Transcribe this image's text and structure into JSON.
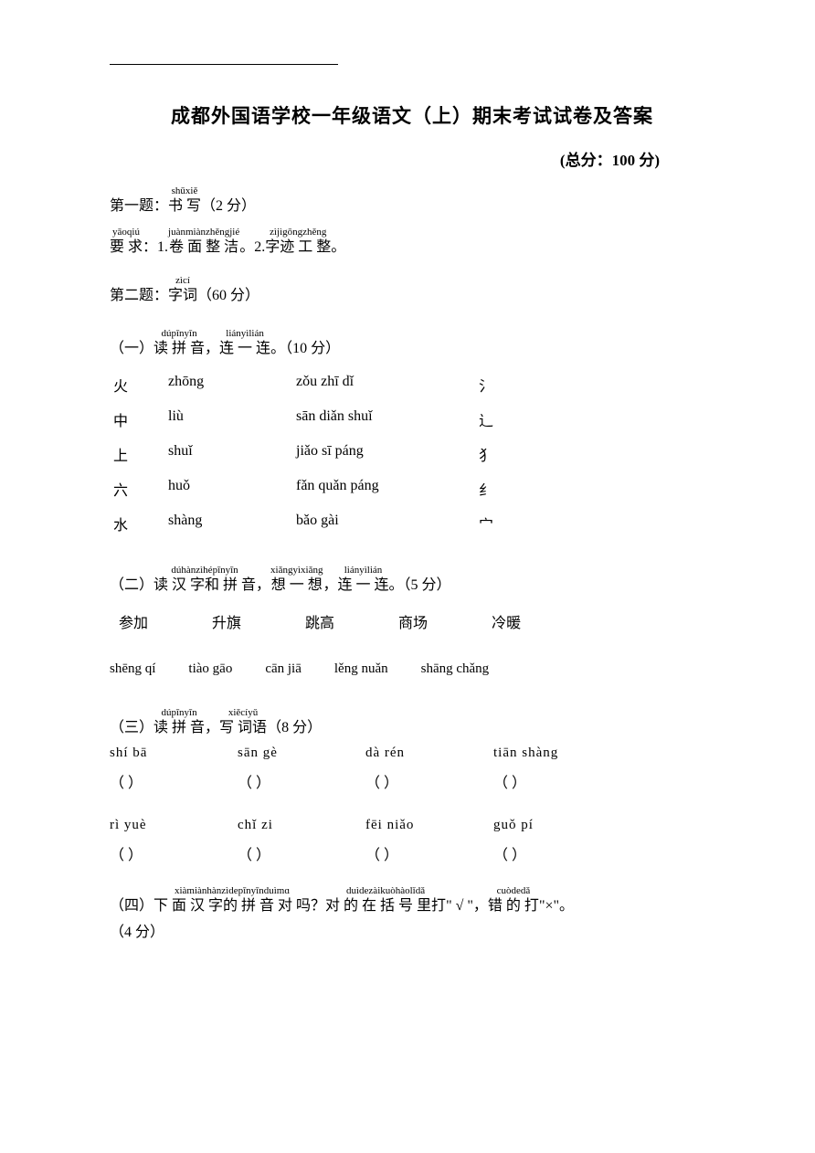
{
  "title": "成都外国语学校一年级语文（上）期末考试试卷及答案",
  "score_label": "(总分：100 分)",
  "q1": {
    "prefix": "第一题：",
    "ruby_py": "shūxiě",
    "ruby_ch": "书 写",
    "points": "（2 分）",
    "req_prefix_py": "yāoqiú",
    "req_prefix_ch": "要  求",
    "colon": "：1.",
    "r1_py": "juànmiànzhěngjié",
    "r1_ch": "卷  面   整  洁",
    "mid": "。2.",
    "r2_py": "zìjìgōngzhěng",
    "r2_ch": "字迹 工   整",
    "end": " 。"
  },
  "q2": {
    "prefix": "第二题：",
    "ruby_py": "zìcí",
    "ruby_ch": "字词",
    "points": "（60 分）"
  },
  "q2_1": {
    "prefix": "（一）",
    "r1_py": "dúpīnyīn",
    "r1_ch": "读 拼 音",
    "comma": "，",
    "r2_py": "liányìlián",
    "r2_ch": " 连 一 连",
    "points": " 。（10 分）",
    "rows": [
      {
        "c1": "火",
        "c2": "zhōng",
        "c3": "zǒu zhī dǐ",
        "c4": "氵"
      },
      {
        "c1": "中",
        "c2": "liù",
        "c3": "sān diǎn shuǐ",
        "c4": "辶"
      },
      {
        "c1": "上",
        "c2": "shuǐ",
        "c3": "jiǎo sī páng",
        "c4": "犭"
      },
      {
        "c1": "六",
        "c2": "huǒ",
        "c3": "fǎn quǎn páng",
        "c4": "纟"
      },
      {
        "c1": "水",
        "c2": "shàng",
        "c3": "bǎo gài",
        "c4": "宀"
      }
    ]
  },
  "q2_2": {
    "prefix": "（二）",
    "r1_py": "dúhànzìhépīnyīn",
    "r1_ch": "读 汉 字和 拼 音",
    "comma1": "，",
    "r2_py": "xiǎngyìxiǎng",
    "r2_ch": " 想 一 想",
    "comma2": " ，",
    "r3_py": "liányìlián",
    "r3_ch": " 连 一 连",
    "points": " 。（5 分）",
    "words": [
      "参加",
      "升旗",
      "跳高",
      "商场",
      "冷暖"
    ],
    "pinyins": [
      "shēng qí",
      "tiào gāo",
      "cān jiā",
      "lěng nuǎn",
      "shāng chǎng"
    ]
  },
  "q2_3": {
    "prefix": "（三）",
    "r1_py": "dúpīnyīn",
    "r1_ch": "读 拼 音",
    "comma": "，",
    "r2_py": "xiěcíyǔ",
    "r2_ch": "写 词语",
    "points": "（8 分）",
    "row1_py": [
      "shí  bā",
      "sān  gè",
      "dà  rén",
      "tiān  shàng"
    ],
    "row2_py": [
      "rì  yuè",
      "chǐ  zi",
      "fēi niǎo",
      "guǒ  pí"
    ],
    "blank": "（        ）"
  },
  "q2_4": {
    "prefix": "（四）",
    "r1_py": "xiàmiànhànzìdepīnyīnduìmɑ",
    "r1_ch": " 下  面  汉 字的 拼 音 对 吗",
    "q": "？",
    "r2_py": "duìdezàikuòhàolǐdǎ",
    "r2_ch": "对 的 在  括  号 里打",
    "check": "\" √ \"，",
    "r3_py": "cuòdedǎ",
    "r3_ch": "错 的 打",
    "cross": "\"×\"。",
    "points": "（4 分）"
  }
}
